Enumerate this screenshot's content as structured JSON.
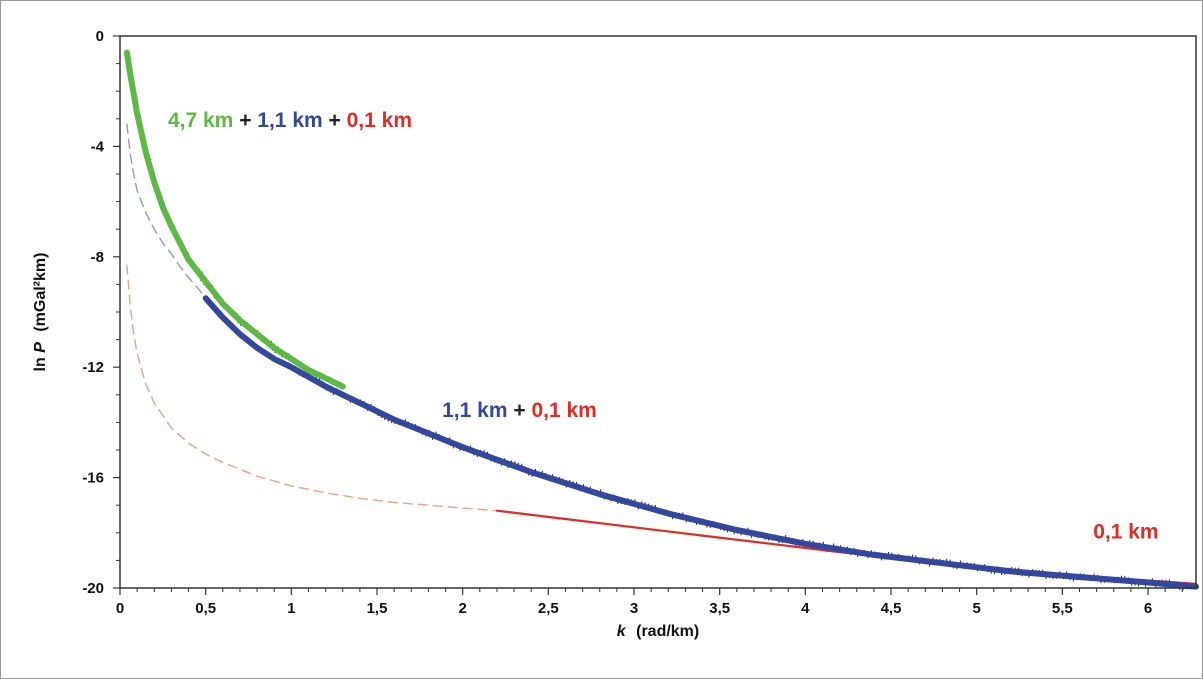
{
  "chart_data": {
    "type": "line",
    "xlabel": "(rad/km)",
    "xlabel_var": "k",
    "ylabel_prefix": "ln ",
    "ylabel_var": "P",
    "ylabel_unit": "(mGal²km)",
    "xlim": [
      0,
      6.28
    ],
    "ylim": [
      -20,
      0
    ],
    "x_ticks": [
      0,
      0.5,
      1,
      1.5,
      2,
      2.5,
      3,
      3.5,
      4,
      4.5,
      5,
      5.5,
      6
    ],
    "x_tick_labels": [
      "0",
      "0,5",
      "1",
      "1,5",
      "2",
      "2,5",
      "3",
      "3,5",
      "4",
      "4,5",
      "5",
      "5,5",
      "6"
    ],
    "y_ticks": [
      0,
      -4,
      -8,
      -12,
      -16,
      -20
    ],
    "y_tick_labels": [
      "0",
      "-4",
      "-8",
      "-12",
      "-16",
      "-20"
    ],
    "grid": false,
    "colors": {
      "green": "#5cb944",
      "blue": "#3346a0",
      "red": "#e22b22",
      "blue_dashed": "#8e97d4",
      "red_dashed": "#f0a086",
      "observed": "#222222"
    },
    "series": [
      {
        "style": "thick-solid",
        "color_key": "green",
        "x": [
          0.04,
          0.06,
          0.08,
          0.1,
          0.15,
          0.2,
          0.25,
          0.3,
          0.35,
          0.4,
          0.45,
          0.5,
          0.6,
          0.7,
          0.8,
          0.9,
          1.0,
          1.1,
          1.2,
          1.3
        ],
        "y": [
          -0.6,
          -1.4,
          -2.1,
          -2.8,
          -4.2,
          -5.3,
          -6.2,
          -6.9,
          -7.5,
          -8.1,
          -8.5,
          -8.9,
          -9.7,
          -10.3,
          -10.8,
          -11.3,
          -11.7,
          -12.1,
          -12.4,
          -12.7
        ]
      },
      {
        "style": "thick-solid",
        "color_key": "blue",
        "x": [
          0.5,
          0.6,
          0.7,
          0.8,
          0.9,
          1.0,
          1.2,
          1.4,
          1.6,
          1.8,
          2.0,
          2.2,
          2.4,
          2.6,
          2.8,
          3.0,
          3.2,
          3.4,
          3.6,
          3.8,
          4.0,
          4.2,
          4.4,
          4.6,
          4.8,
          5.0,
          5.2,
          5.4,
          5.6,
          5.8,
          6.0,
          6.28
        ],
        "y": [
          -9.5,
          -10.2,
          -10.8,
          -11.3,
          -11.7,
          -12.0,
          -12.7,
          -13.3,
          -13.9,
          -14.4,
          -14.9,
          -15.35,
          -15.8,
          -16.2,
          -16.6,
          -16.95,
          -17.3,
          -17.6,
          -17.9,
          -18.15,
          -18.4,
          -18.6,
          -18.8,
          -18.95,
          -19.1,
          -19.25,
          -19.4,
          -19.5,
          -19.6,
          -19.7,
          -19.8,
          -19.95
        ]
      },
      {
        "style": "dashed",
        "color_key": "blue_dashed",
        "x": [
          0.04,
          0.06,
          0.08,
          0.1,
          0.15,
          0.2,
          0.25,
          0.3,
          0.35,
          0.4,
          0.45,
          0.5
        ],
        "y": [
          -3.2,
          -4.3,
          -5.0,
          -5.6,
          -6.4,
          -7.0,
          -7.5,
          -7.9,
          -8.35,
          -8.75,
          -9.1,
          -9.5
        ]
      },
      {
        "style": "dashed",
        "color_key": "red_dashed",
        "x": [
          0.04,
          0.06,
          0.08,
          0.1,
          0.15,
          0.2,
          0.3,
          0.4,
          0.5,
          0.6,
          0.8,
          1.0,
          1.2,
          1.4,
          1.6,
          1.8,
          2.0,
          2.2
        ],
        "y": [
          -8.3,
          -9.8,
          -10.8,
          -11.5,
          -12.6,
          -13.3,
          -14.2,
          -14.75,
          -15.15,
          -15.45,
          -15.95,
          -16.3,
          -16.55,
          -16.75,
          -16.9,
          -17.0,
          -17.1,
          -17.2
        ]
      },
      {
        "style": "solid",
        "color_key": "red",
        "x": [
          2.2,
          2.6,
          3.0,
          3.4,
          3.8,
          4.2,
          4.6,
          5.0,
          5.4,
          5.8,
          6.28
        ],
        "y": [
          -17.2,
          -17.5,
          -17.8,
          -18.1,
          -18.4,
          -18.7,
          -18.95,
          -19.2,
          -19.45,
          -19.65,
          -19.85
        ]
      }
    ],
    "annotations": [
      {
        "x": 0.28,
        "y": -3.3,
        "parts": [
          {
            "text": "4,7 km",
            "color_key": "green"
          },
          {
            "text": " + ",
            "color_key": "observed"
          },
          {
            "text": "1,1 km",
            "color_key": "blue"
          },
          {
            "text": " + ",
            "color_key": "observed"
          },
          {
            "text": "0,1 km",
            "color_key": "red"
          }
        ]
      },
      {
        "x": 1.88,
        "y": -13.8,
        "parts": [
          {
            "text": "1,1 km",
            "color_key": "blue"
          },
          {
            "text": " + ",
            "color_key": "observed"
          },
          {
            "text": "0,1 km",
            "color_key": "red"
          }
        ]
      },
      {
        "x": 5.68,
        "y": -18.2,
        "parts": [
          {
            "text": "0,1 km",
            "color_key": "red"
          }
        ]
      }
    ]
  }
}
